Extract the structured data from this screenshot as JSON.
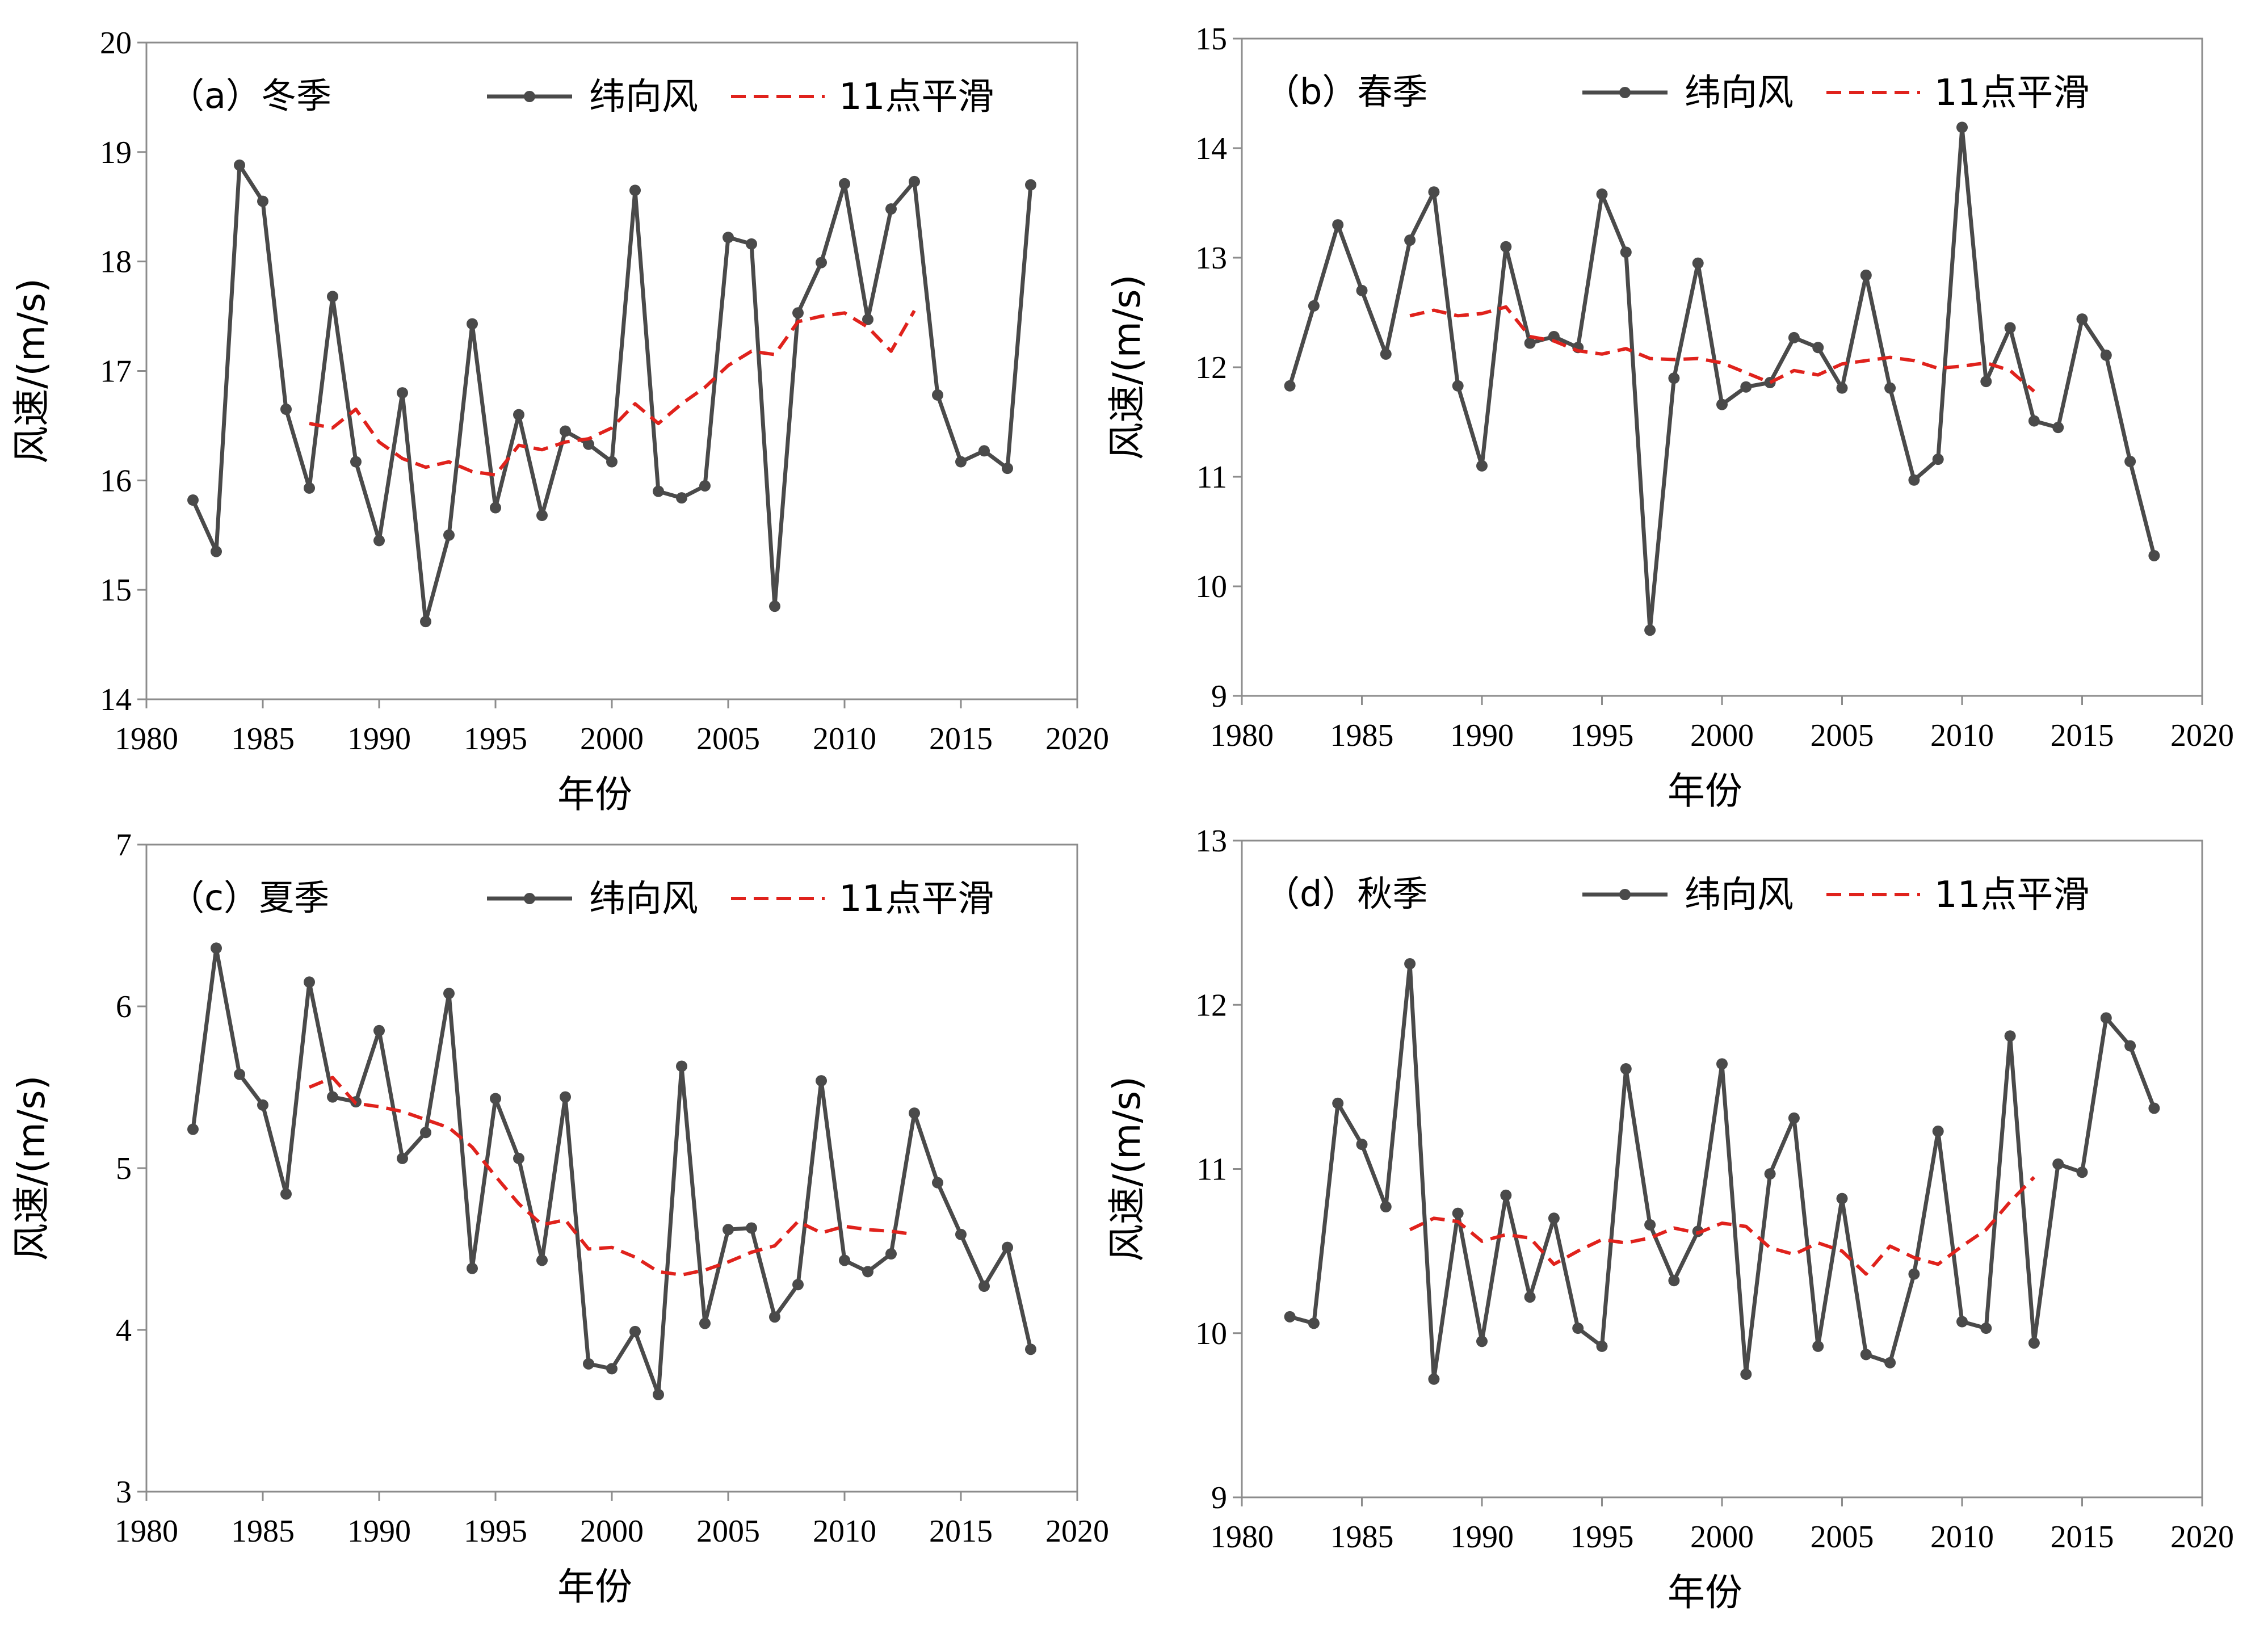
{
  "chart_data": [
    {
      "type": "line",
      "panel_label": "（a）冬季",
      "xlabel": "年份",
      "ylabel": "风速/(m/s)",
      "xlim": [
        1980,
        2020
      ],
      "ylim": [
        14,
        20
      ],
      "xticks": [
        1980,
        1985,
        1990,
        1995,
        2000,
        2005,
        2010,
        2015,
        2020
      ],
      "yticks": [
        14,
        15,
        16,
        17,
        18,
        19,
        20
      ],
      "grid": false,
      "legend_position": "top-right",
      "series": [
        {
          "name": "纬向风",
          "style": "solid-markers",
          "color": "#4a4a4a",
          "x": [
            1982,
            1983,
            1984,
            1985,
            1986,
            1987,
            1988,
            1989,
            1990,
            1991,
            1992,
            1993,
            1994,
            1995,
            1996,
            1997,
            1998,
            1999,
            2000,
            2001,
            2002,
            2003,
            2004,
            2005,
            2006,
            2007,
            2008,
            2009,
            2010,
            2011,
            2012,
            2013,
            2014,
            2015,
            2016,
            2017,
            2018
          ],
          "values": [
            15.82,
            15.35,
            18.88,
            18.55,
            16.65,
            15.93,
            17.68,
            16.17,
            15.45,
            16.8,
            14.71,
            15.5,
            17.43,
            15.75,
            16.6,
            15.68,
            16.45,
            16.33,
            16.17,
            18.65,
            15.9,
            15.84,
            15.95,
            18.22,
            18.16,
            14.85,
            17.53,
            17.99,
            18.71,
            17.47,
            18.48,
            18.73,
            16.78,
            16.17,
            16.27,
            16.11,
            18.7
          ]
        },
        {
          "name": "11点平滑",
          "style": "dashed",
          "color": "#e0221c",
          "x": [
            1987,
            1988,
            1989,
            1990,
            1991,
            1992,
            1993,
            1994,
            1995,
            1996,
            1997,
            1998,
            1999,
            2000,
            2001,
            2002,
            2003,
            2004,
            2005,
            2006,
            2007,
            2008,
            2009,
            2010,
            2011,
            2012,
            2013
          ],
          "values": [
            16.52,
            16.48,
            16.65,
            16.35,
            16.2,
            16.12,
            16.17,
            16.08,
            16.05,
            16.32,
            16.28,
            16.35,
            16.38,
            16.48,
            16.7,
            16.52,
            16.7,
            16.85,
            17.05,
            17.18,
            17.15,
            17.45,
            17.5,
            17.53,
            17.4,
            17.18,
            17.55
          ]
        }
      ]
    },
    {
      "type": "line",
      "panel_label": "（b）春季",
      "xlabel": "年份",
      "ylabel": "风速/(m/s)",
      "xlim": [
        1980,
        2020
      ],
      "ylim": [
        9,
        15
      ],
      "xticks": [
        1980,
        1985,
        1990,
        1995,
        2000,
        2005,
        2010,
        2015,
        2020
      ],
      "yticks": [
        9,
        10,
        11,
        12,
        13,
        14,
        15
      ],
      "grid": false,
      "legend_position": "top-right",
      "series": [
        {
          "name": "纬向风",
          "style": "solid-markers",
          "color": "#4a4a4a",
          "x": [
            1982,
            1983,
            1984,
            1985,
            1986,
            1987,
            1988,
            1989,
            1990,
            1991,
            1992,
            1993,
            1994,
            1995,
            1996,
            1997,
            1998,
            1999,
            2000,
            2001,
            2002,
            2003,
            2004,
            2005,
            2006,
            2007,
            2008,
            2009,
            2010,
            2011,
            2012,
            2013,
            2014,
            2015,
            2016,
            2017,
            2018
          ],
          "values": [
            11.83,
            12.56,
            13.3,
            12.7,
            12.12,
            13.16,
            13.6,
            11.83,
            11.1,
            13.1,
            12.22,
            12.28,
            12.18,
            13.58,
            13.05,
            9.6,
            11.9,
            12.95,
            11.66,
            11.82,
            11.86,
            12.27,
            12.18,
            11.81,
            12.84,
            11.81,
            10.97,
            11.16,
            14.19,
            11.87,
            12.36,
            11.51,
            11.45,
            12.44,
            12.11,
            11.14,
            10.28
          ]
        },
        {
          "name": "11点平滑",
          "style": "dashed",
          "color": "#e0221c",
          "x": [
            1987,
            1988,
            1989,
            1990,
            1991,
            1992,
            1993,
            1994,
            1995,
            1996,
            1997,
            1998,
            1999,
            2000,
            2001,
            2002,
            2003,
            2004,
            2005,
            2006,
            2007,
            2008,
            2009,
            2010,
            2011,
            2012,
            2013
          ],
          "values": [
            12.47,
            12.52,
            12.47,
            12.49,
            12.55,
            12.28,
            12.24,
            12.15,
            12.12,
            12.17,
            12.08,
            12.07,
            12.08,
            12.04,
            11.95,
            11.86,
            11.97,
            11.93,
            12.03,
            12.06,
            12.09,
            12.06,
            11.99,
            12.01,
            12.04,
            11.97,
            11.78
          ]
        }
      ]
    },
    {
      "type": "line",
      "panel_label": "（c）夏季",
      "xlabel": "年份",
      "ylabel": "风速/(m/s)",
      "xlim": [
        1980,
        2020
      ],
      "ylim": [
        3,
        7
      ],
      "xticks": [
        1980,
        1985,
        1990,
        1995,
        2000,
        2005,
        2010,
        2015,
        2020
      ],
      "yticks": [
        3,
        4,
        5,
        6,
        7
      ],
      "grid": false,
      "legend_position": "top-right",
      "series": [
        {
          "name": "纬向风",
          "style": "solid-markers",
          "color": "#4a4a4a",
          "x": [
            1982,
            1983,
            1984,
            1985,
            1986,
            1987,
            1988,
            1989,
            1990,
            1991,
            1992,
            1993,
            1994,
            1995,
            1996,
            1997,
            1998,
            1999,
            2000,
            2001,
            2002,
            2003,
            2004,
            2005,
            2006,
            2007,
            2008,
            2009,
            2010,
            2011,
            2012,
            2013,
            2014,
            2015,
            2016,
            2017,
            2018
          ],
          "values": [
            5.24,
            6.36,
            5.58,
            5.39,
            4.84,
            6.15,
            5.44,
            5.41,
            5.85,
            5.06,
            5.22,
            6.08,
            4.38,
            5.43,
            5.06,
            4.43,
            5.44,
            3.79,
            3.76,
            3.99,
            3.6,
            5.63,
            4.04,
            4.62,
            4.63,
            4.08,
            4.28,
            5.54,
            4.43,
            4.36,
            4.47,
            5.34,
            4.91,
            4.59,
            4.27,
            4.51,
            3.88
          ]
        },
        {
          "name": "11点平滑",
          "style": "dashed",
          "color": "#e0221c",
          "x": [
            1987,
            1988,
            1989,
            1990,
            1991,
            1992,
            1993,
            1994,
            1995,
            1996,
            1997,
            1998,
            1999,
            2000,
            2001,
            2002,
            2003,
            2004,
            2005,
            2006,
            2007,
            2008,
            2009,
            2010,
            2011,
            2012,
            2013
          ],
          "values": [
            5.5,
            5.56,
            5.4,
            5.38,
            5.35,
            5.3,
            5.25,
            5.13,
            4.95,
            4.78,
            4.65,
            4.68,
            4.5,
            4.51,
            4.45,
            4.36,
            4.34,
            4.37,
            4.42,
            4.48,
            4.52,
            4.67,
            4.6,
            4.64,
            4.62,
            4.61,
            4.59
          ]
        }
      ]
    },
    {
      "type": "line",
      "panel_label": "（d）秋季",
      "xlabel": "年份",
      "ylabel": "风速/(m/s)",
      "xlim": [
        1980,
        2020
      ],
      "ylim": [
        9,
        13
      ],
      "xticks": [
        1980,
        1985,
        1990,
        1995,
        2000,
        2005,
        2010,
        2015,
        2020
      ],
      "yticks": [
        9,
        10,
        11,
        12,
        13
      ],
      "grid": false,
      "legend_position": "top-right",
      "series": [
        {
          "name": "纬向风",
          "style": "solid-markers",
          "color": "#4a4a4a",
          "x": [
            1982,
            1983,
            1984,
            1985,
            1986,
            1987,
            1988,
            1989,
            1990,
            1991,
            1992,
            1993,
            1994,
            1995,
            1996,
            1997,
            1998,
            1999,
            2000,
            2001,
            2002,
            2003,
            2004,
            2005,
            2006,
            2007,
            2008,
            2009,
            2010,
            2011,
            2012,
            2013,
            2014,
            2015,
            2016,
            2017,
            2018
          ],
          "values": [
            10.1,
            10.06,
            11.4,
            11.15,
            10.77,
            12.25,
            9.72,
            10.73,
            9.95,
            10.84,
            10.22,
            10.7,
            10.03,
            9.92,
            11.61,
            10.66,
            10.32,
            10.62,
            11.64,
            9.75,
            10.97,
            11.31,
            9.92,
            10.82,
            9.87,
            9.82,
            10.36,
            11.23,
            10.07,
            10.03,
            11.81,
            9.94,
            11.03,
            10.98,
            11.92,
            11.75,
            11.37
          ]
        },
        {
          "name": "11点平滑",
          "style": "dashed",
          "color": "#e0221c",
          "x": [
            1987,
            1988,
            1989,
            1990,
            1991,
            1992,
            1993,
            1994,
            1995,
            1996,
            1997,
            1998,
            1999,
            2000,
            2001,
            2002,
            2003,
            2004,
            2005,
            2006,
            2007,
            2008,
            2009,
            2010,
            2011,
            2012,
            2013
          ],
          "values": [
            10.63,
            10.7,
            10.68,
            10.56,
            10.6,
            10.58,
            10.42,
            10.5,
            10.57,
            10.55,
            10.58,
            10.64,
            10.61,
            10.67,
            10.65,
            10.52,
            10.48,
            10.55,
            10.5,
            10.36,
            10.53,
            10.46,
            10.42,
            10.53,
            10.63,
            10.8,
            10.95
          ]
        }
      ]
    }
  ]
}
